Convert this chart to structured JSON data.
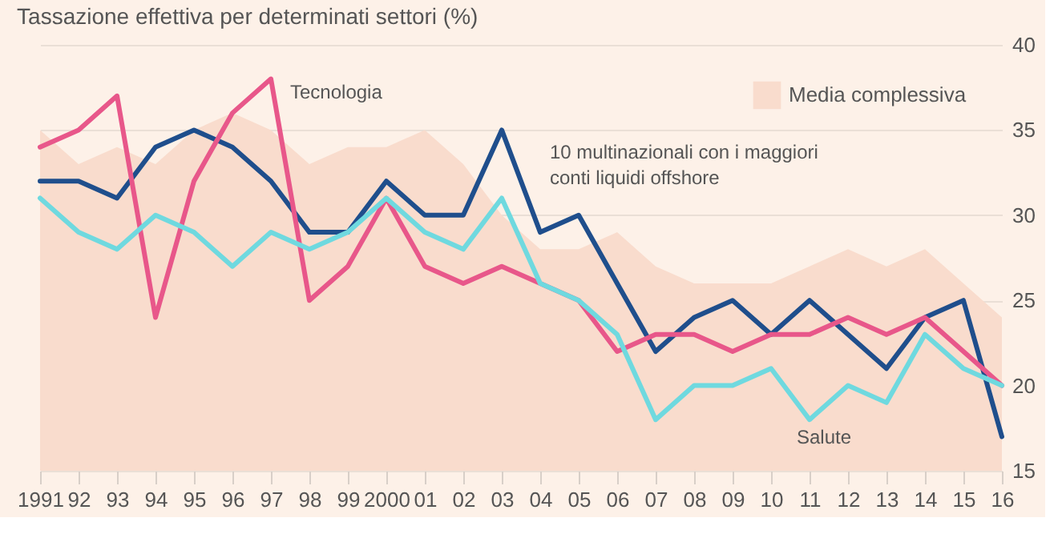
{
  "chart_data": {
    "type": "line",
    "title": "Tassazione effettiva per determinati settori (%)",
    "categories": [
      "1991",
      "92",
      "93",
      "94",
      "95",
      "96",
      "97",
      "98",
      "99",
      "2000",
      "01",
      "02",
      "03",
      "04",
      "05",
      "06",
      "07",
      "08",
      "09",
      "10",
      "11",
      "12",
      "13",
      "14",
      "15",
      "16"
    ],
    "series": [
      {
        "name": "Media complessiva",
        "type": "area",
        "color": "#f9dccd",
        "values": [
          35,
          33,
          34,
          33,
          35,
          36,
          35,
          33,
          34,
          34,
          35,
          33,
          30,
          28,
          28,
          29,
          27,
          26,
          26,
          26,
          27,
          28,
          27,
          28,
          26,
          24
        ]
      },
      {
        "name": "10 multinazionali con i maggiori conti liquidi offshore",
        "color": "#1f4e8c",
        "values": [
          32,
          32,
          31,
          34,
          35,
          34,
          32,
          29,
          29,
          32,
          30,
          30,
          35,
          29,
          30,
          26,
          22,
          24,
          25,
          23,
          25,
          23,
          21,
          24,
          25,
          17
        ]
      },
      {
        "name": "Tecnologia",
        "color": "#e8578a",
        "values": [
          34,
          35,
          37,
          24,
          32,
          36,
          38,
          25,
          27,
          31,
          27,
          26,
          27,
          26,
          25,
          22,
          23,
          23,
          22,
          23,
          23,
          24,
          23,
          24,
          22,
          20
        ]
      },
      {
        "name": "Salute",
        "color": "#6fd9df",
        "values": [
          31,
          29,
          28,
          30,
          29,
          27,
          29,
          28,
          29,
          31,
          29,
          28,
          31,
          26,
          25,
          23,
          18,
          20,
          20,
          21,
          18,
          20,
          19,
          23,
          21,
          20
        ]
      }
    ],
    "ylim": [
      15,
      40
    ],
    "yticks": [
      15,
      20,
      25,
      30,
      35,
      40
    ],
    "grid": "y",
    "legend": "top right",
    "marker": "none",
    "line_style": "solid"
  }
}
